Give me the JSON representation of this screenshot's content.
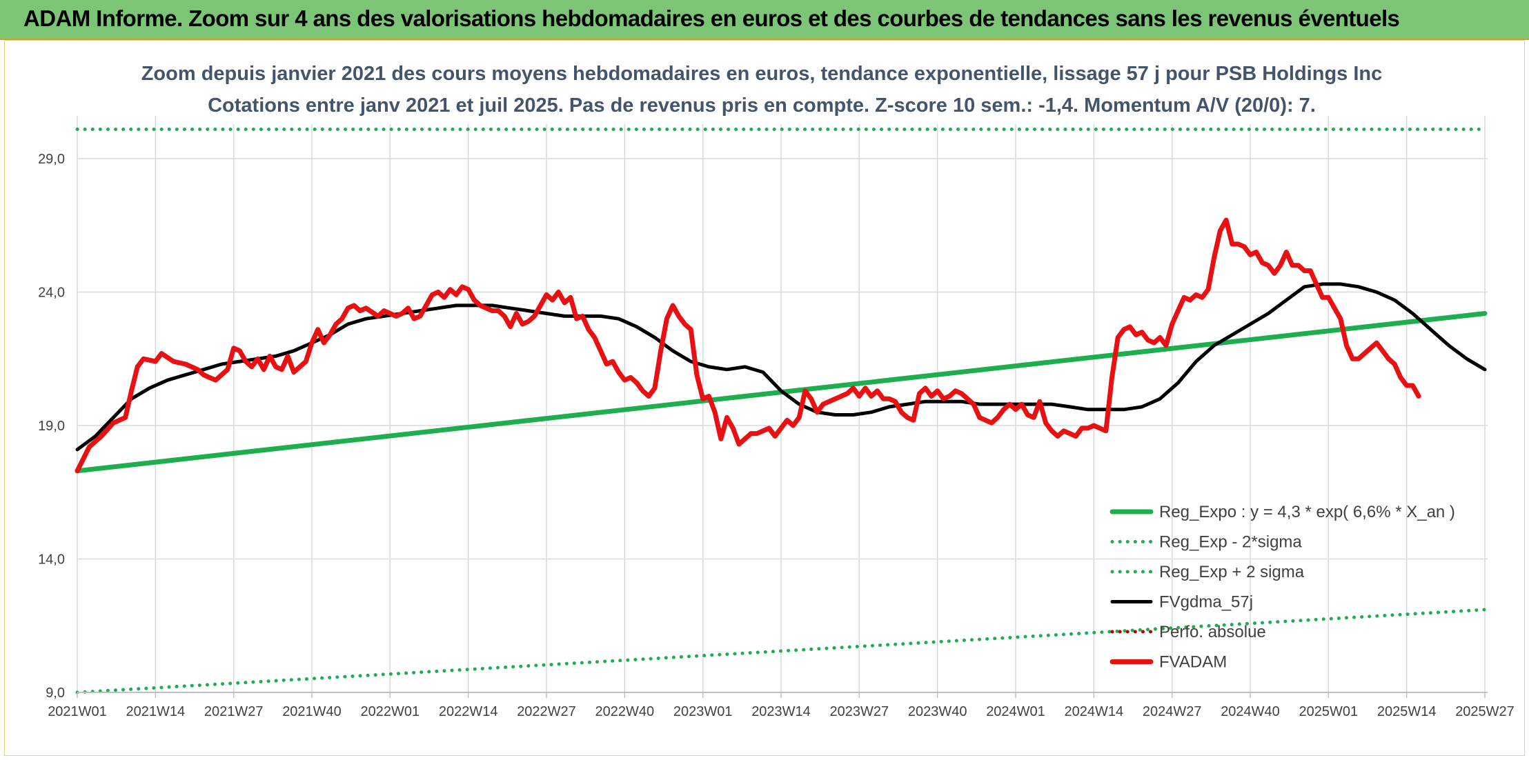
{
  "header": {
    "title": "ADAM Informe. Zoom sur 4 ans des valorisations hebdomadaires en euros et des courbes de tendances sans les revenus éventuels"
  },
  "chart_data": {
    "type": "line",
    "title": "Zoom depuis janvier 2021 des cours moyens hebdomadaires en euros, tendance exponentielle, lissage 57 j pour PSB Holdings Inc",
    "subtitle": "Cotations entre janv 2021 et juil 2025. Pas de revenus pris en compte. Z-score 10 sem.: -1,4. Momentum A/V (20/0): 7.",
    "xlabel": "",
    "ylabel": "",
    "ylim": [
      9,
      30.5
    ],
    "y_ticks": [
      "9,0",
      "14,0",
      "19,0",
      "24,0",
      "29,0"
    ],
    "y_tick_values": [
      9,
      14,
      19,
      24,
      29
    ],
    "x_ticks": [
      "2021W01",
      "2021W14",
      "2021W27",
      "2021W40",
      "2022W01",
      "2022W14",
      "2022W27",
      "2022W40",
      "2023W01",
      "2023W14",
      "2023W27",
      "2023W40",
      "2024W01",
      "2024W14",
      "2024W27",
      "2024W40",
      "2025W01",
      "2025W14",
      "2025W27"
    ],
    "x_tick_weeks": [
      0,
      13,
      26,
      39,
      52,
      65,
      78,
      91,
      104,
      117,
      130,
      143,
      156,
      169,
      182,
      195,
      208,
      221,
      234
    ],
    "grid": "on",
    "legend_position": "bottom-right",
    "series": [
      {
        "name": "Reg_Expo : y = 4,3 * exp( 6,6% *  X_an )",
        "color": "#1fae4f",
        "style": "solid",
        "points": [
          [
            0,
            17.3
          ],
          [
            234,
            23.2
          ]
        ]
      },
      {
        "name": "Reg_Exp - 2*sigma",
        "color": "#1fae4f",
        "style": "dotted",
        "points": [
          [
            0,
            9.0
          ],
          [
            234,
            12.1
          ]
        ]
      },
      {
        "name": "Reg_Exp + 2 sigma",
        "color": "#1fae4f",
        "style": "dotted",
        "points": [
          [
            0,
            30.1
          ],
          [
            234,
            30.1
          ]
        ]
      },
      {
        "name": "FVgdma_57j",
        "color": "#000000",
        "style": "solid",
        "points": [
          [
            0,
            18.1
          ],
          [
            3,
            18.6
          ],
          [
            6,
            19.3
          ],
          [
            9,
            20.0
          ],
          [
            12,
            20.4
          ],
          [
            15,
            20.7
          ],
          [
            18,
            20.9
          ],
          [
            21,
            21.1
          ],
          [
            24,
            21.3
          ],
          [
            27,
            21.4
          ],
          [
            30,
            21.5
          ],
          [
            33,
            21.6
          ],
          [
            36,
            21.8
          ],
          [
            39,
            22.1
          ],
          [
            42,
            22.4
          ],
          [
            45,
            22.8
          ],
          [
            48,
            23.0
          ],
          [
            51,
            23.1
          ],
          [
            54,
            23.2
          ],
          [
            57,
            23.3
          ],
          [
            60,
            23.4
          ],
          [
            63,
            23.5
          ],
          [
            66,
            23.5
          ],
          [
            69,
            23.5
          ],
          [
            72,
            23.4
          ],
          [
            75,
            23.3
          ],
          [
            78,
            23.2
          ],
          [
            81,
            23.1
          ],
          [
            84,
            23.1
          ],
          [
            87,
            23.1
          ],
          [
            90,
            23.0
          ],
          [
            93,
            22.7
          ],
          [
            96,
            22.3
          ],
          [
            99,
            21.8
          ],
          [
            102,
            21.4
          ],
          [
            105,
            21.2
          ],
          [
            108,
            21.1
          ],
          [
            111,
            21.2
          ],
          [
            114,
            21.0
          ],
          [
            117,
            20.3
          ],
          [
            120,
            19.8
          ],
          [
            123,
            19.5
          ],
          [
            126,
            19.4
          ],
          [
            129,
            19.4
          ],
          [
            132,
            19.5
          ],
          [
            135,
            19.7
          ],
          [
            138,
            19.8
          ],
          [
            141,
            19.9
          ],
          [
            144,
            19.9
          ],
          [
            147,
            19.9
          ],
          [
            150,
            19.8
          ],
          [
            153,
            19.8
          ],
          [
            156,
            19.8
          ],
          [
            159,
            19.8
          ],
          [
            162,
            19.8
          ],
          [
            165,
            19.7
          ],
          [
            168,
            19.6
          ],
          [
            171,
            19.6
          ],
          [
            174,
            19.6
          ],
          [
            177,
            19.7
          ],
          [
            180,
            20.0
          ],
          [
            183,
            20.6
          ],
          [
            186,
            21.4
          ],
          [
            189,
            22.0
          ],
          [
            192,
            22.4
          ],
          [
            195,
            22.8
          ],
          [
            198,
            23.2
          ],
          [
            201,
            23.7
          ],
          [
            204,
            24.2
          ],
          [
            207,
            24.3
          ],
          [
            210,
            24.3
          ],
          [
            213,
            24.2
          ],
          [
            216,
            24.0
          ],
          [
            219,
            23.7
          ],
          [
            222,
            23.2
          ],
          [
            225,
            22.6
          ],
          [
            228,
            22.0
          ],
          [
            231,
            21.5
          ],
          [
            234,
            21.1
          ]
        ]
      },
      {
        "name": "Perfo. absolue",
        "color": "#c00000",
        "style": "dotted",
        "points": []
      },
      {
        "name": "FVADAM",
        "color": "#e81010",
        "style": "solid",
        "points": [
          [
            0,
            17.3
          ],
          [
            2,
            18.2
          ],
          [
            4,
            18.6
          ],
          [
            6,
            19.1
          ],
          [
            8,
            19.3
          ],
          [
            9,
            20.3
          ],
          [
            10,
            21.2
          ],
          [
            11,
            21.5
          ],
          [
            13,
            21.4
          ],
          [
            14,
            21.7
          ],
          [
            16,
            21.4
          ],
          [
            18,
            21.3
          ],
          [
            20,
            21.1
          ],
          [
            21,
            20.9
          ],
          [
            22,
            20.8
          ],
          [
            23,
            20.7
          ],
          [
            25,
            21.1
          ],
          [
            26,
            21.9
          ],
          [
            27,
            21.8
          ],
          [
            28,
            21.4
          ],
          [
            29,
            21.2
          ],
          [
            30,
            21.5
          ],
          [
            31,
            21.1
          ],
          [
            32,
            21.6
          ],
          [
            33,
            21.2
          ],
          [
            34,
            21.1
          ],
          [
            35,
            21.6
          ],
          [
            36,
            21.0
          ],
          [
            38,
            21.4
          ],
          [
            39,
            22.1
          ],
          [
            40,
            22.6
          ],
          [
            41,
            22.1
          ],
          [
            42,
            22.4
          ],
          [
            43,
            22.8
          ],
          [
            44,
            23.0
          ],
          [
            45,
            23.4
          ],
          [
            46,
            23.5
          ],
          [
            47,
            23.3
          ],
          [
            48,
            23.4
          ],
          [
            50,
            23.1
          ],
          [
            51,
            23.3
          ],
          [
            52,
            23.2
          ],
          [
            53,
            23.1
          ],
          [
            54,
            23.2
          ],
          [
            55,
            23.4
          ],
          [
            56,
            23.0
          ],
          [
            57,
            23.1
          ],
          [
            58,
            23.5
          ],
          [
            59,
            23.9
          ],
          [
            60,
            24.0
          ],
          [
            61,
            23.8
          ],
          [
            62,
            24.1
          ],
          [
            63,
            23.9
          ],
          [
            64,
            24.2
          ],
          [
            65,
            24.1
          ],
          [
            66,
            23.7
          ],
          [
            67,
            23.5
          ],
          [
            68,
            23.4
          ],
          [
            69,
            23.3
          ],
          [
            70,
            23.3
          ],
          [
            71,
            23.1
          ],
          [
            72,
            22.7
          ],
          [
            73,
            23.2
          ],
          [
            74,
            22.8
          ],
          [
            75,
            22.9
          ],
          [
            76,
            23.1
          ],
          [
            77,
            23.5
          ],
          [
            78,
            23.9
          ],
          [
            79,
            23.7
          ],
          [
            80,
            24.0
          ],
          [
            81,
            23.6
          ],
          [
            82,
            23.8
          ],
          [
            83,
            23.0
          ],
          [
            84,
            23.1
          ],
          [
            85,
            22.6
          ],
          [
            86,
            22.3
          ],
          [
            87,
            21.8
          ],
          [
            88,
            21.3
          ],
          [
            89,
            21.4
          ],
          [
            90,
            21.0
          ],
          [
            91,
            20.7
          ],
          [
            92,
            20.8
          ],
          [
            93,
            20.6
          ],
          [
            94,
            20.3
          ],
          [
            95,
            20.1
          ],
          [
            96,
            20.4
          ],
          [
            97,
            21.8
          ],
          [
            98,
            23.0
          ],
          [
            99,
            23.5
          ],
          [
            100,
            23.1
          ],
          [
            101,
            22.8
          ],
          [
            102,
            22.6
          ],
          [
            103,
            20.9
          ],
          [
            104,
            20.0
          ],
          [
            105,
            20.1
          ],
          [
            106,
            19.5
          ],
          [
            107,
            18.5
          ],
          [
            108,
            19.3
          ],
          [
            109,
            18.9
          ],
          [
            110,
            18.3
          ],
          [
            111,
            18.5
          ],
          [
            112,
            18.7
          ],
          [
            113,
            18.7
          ],
          [
            114,
            18.8
          ],
          [
            115,
            18.9
          ],
          [
            116,
            18.6
          ],
          [
            117,
            18.9
          ],
          [
            118,
            19.2
          ],
          [
            119,
            19.0
          ],
          [
            120,
            19.3
          ],
          [
            121,
            20.3
          ],
          [
            122,
            20.0
          ],
          [
            123,
            19.5
          ],
          [
            124,
            19.8
          ],
          [
            125,
            19.9
          ],
          [
            126,
            20.0
          ],
          [
            127,
            20.1
          ],
          [
            128,
            20.2
          ],
          [
            129,
            20.4
          ],
          [
            130,
            20.1
          ],
          [
            131,
            20.4
          ],
          [
            132,
            20.1
          ],
          [
            133,
            20.3
          ],
          [
            134,
            20.0
          ],
          [
            135,
            20.0
          ],
          [
            136,
            19.9
          ],
          [
            137,
            19.5
          ],
          [
            138,
            19.3
          ],
          [
            139,
            19.2
          ],
          [
            140,
            20.2
          ],
          [
            141,
            20.4
          ],
          [
            142,
            20.1
          ],
          [
            143,
            20.3
          ],
          [
            144,
            20.0
          ],
          [
            145,
            20.1
          ],
          [
            146,
            20.3
          ],
          [
            147,
            20.2
          ],
          [
            148,
            20.0
          ],
          [
            149,
            19.8
          ],
          [
            150,
            19.3
          ],
          [
            151,
            19.2
          ],
          [
            152,
            19.1
          ],
          [
            153,
            19.3
          ],
          [
            154,
            19.6
          ],
          [
            155,
            19.8
          ],
          [
            156,
            19.6
          ],
          [
            157,
            19.8
          ],
          [
            158,
            19.4
          ],
          [
            159,
            19.3
          ],
          [
            160,
            19.9
          ],
          [
            161,
            19.1
          ],
          [
            162,
            18.8
          ],
          [
            163,
            18.6
          ],
          [
            164,
            18.8
          ],
          [
            165,
            18.7
          ],
          [
            166,
            18.6
          ],
          [
            167,
            18.9
          ],
          [
            168,
            18.9
          ],
          [
            169,
            19.0
          ],
          [
            170,
            18.9
          ],
          [
            171,
            18.8
          ],
          [
            172,
            20.8
          ],
          [
            173,
            22.3
          ],
          [
            174,
            22.6
          ],
          [
            175,
            22.7
          ],
          [
            176,
            22.4
          ],
          [
            177,
            22.5
          ],
          [
            178,
            22.2
          ],
          [
            179,
            22.1
          ],
          [
            180,
            22.3
          ],
          [
            181,
            22.0
          ],
          [
            182,
            22.8
          ],
          [
            183,
            23.3
          ],
          [
            184,
            23.8
          ],
          [
            185,
            23.7
          ],
          [
            186,
            23.9
          ],
          [
            187,
            23.8
          ],
          [
            188,
            24.1
          ],
          [
            189,
            25.3
          ],
          [
            190,
            26.3
          ],
          [
            191,
            26.7
          ],
          [
            192,
            25.8
          ],
          [
            193,
            25.8
          ],
          [
            194,
            25.7
          ],
          [
            195,
            25.4
          ],
          [
            196,
            25.5
          ],
          [
            197,
            25.1
          ],
          [
            198,
            25.0
          ],
          [
            199,
            24.7
          ],
          [
            200,
            25.0
          ],
          [
            201,
            25.5
          ],
          [
            202,
            25.0
          ],
          [
            203,
            25.0
          ],
          [
            204,
            24.8
          ],
          [
            205,
            24.8
          ],
          [
            206,
            24.3
          ],
          [
            207,
            23.8
          ],
          [
            208,
            23.8
          ],
          [
            209,
            23.4
          ],
          [
            210,
            23.0
          ],
          [
            211,
            22.0
          ],
          [
            212,
            21.5
          ],
          [
            213,
            21.5
          ],
          [
            214,
            21.7
          ],
          [
            215,
            21.9
          ],
          [
            216,
            22.1
          ],
          [
            217,
            21.8
          ],
          [
            218,
            21.5
          ],
          [
            219,
            21.3
          ],
          [
            220,
            20.8
          ],
          [
            221,
            20.5
          ],
          [
            222,
            20.5
          ],
          [
            223,
            20.1
          ]
        ]
      }
    ]
  }
}
